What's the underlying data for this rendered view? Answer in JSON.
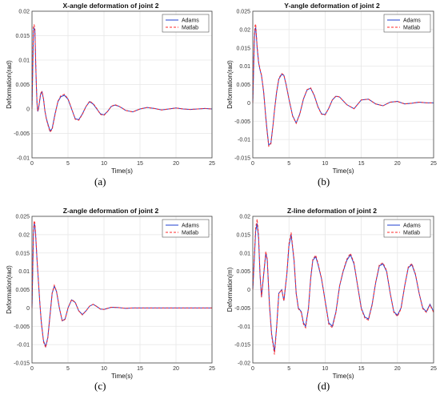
{
  "colors": {
    "adams": "#1f3fd0",
    "matlab": "#ff2a2a",
    "grid": "#e6e6e6",
    "axis": "#444444"
  },
  "captions": [
    "(a)",
    "(b)",
    "(c)",
    "(d)"
  ],
  "chart_data": [
    {
      "type": "line",
      "title": "X-angle deformation of joint 2",
      "xlabel": "Time(s)",
      "ylabel": "Deformation(rad)",
      "xlim": [
        0,
        25
      ],
      "ylim": [
        -0.01,
        0.02
      ],
      "xticks": [
        0,
        5,
        10,
        15,
        20,
        25
      ],
      "yticks": [
        -0.01,
        -0.005,
        0,
        0.005,
        0.01,
        0.015,
        0.02
      ],
      "ytick_labels": [
        "-0.01",
        "-0.005",
        "0",
        "0.005",
        "0.01",
        "0.015",
        "0.02"
      ],
      "grid": true,
      "legend_position": "top-right",
      "series": [
        {
          "name": "Adams",
          "style": "solid",
          "color": "#1f3fd0",
          "x": [
            0,
            0.1,
            0.2,
            0.3,
            0.4,
            0.5,
            0.6,
            0.7,
            0.8,
            0.9,
            1,
            1.2,
            1.4,
            1.6,
            1.8,
            2,
            2.2,
            2.5,
            2.8,
            3.2,
            3.6,
            4,
            4.5,
            5,
            5.5,
            6,
            6.5,
            7,
            7.5,
            8,
            8.5,
            9,
            9.5,
            10,
            10.5,
            11,
            11.5,
            12,
            12.5,
            13,
            14,
            15,
            16,
            17,
            18,
            19,
            20,
            21,
            22,
            23,
            24,
            25
          ],
          "y": [
            0,
            0.008,
            0.016,
            0.0165,
            0.016,
            0.01,
            0.005,
            0.001,
            -0.0005,
            0,
            0.001,
            0.003,
            0.0035,
            0.002,
            -0.0005,
            -0.002,
            -0.003,
            -0.0045,
            -0.004,
            -0.001,
            0.0015,
            0.0025,
            0.0028,
            0.002,
            0,
            -0.002,
            -0.0022,
            -0.001,
            0.0005,
            0.0015,
            0.001,
            0,
            -0.001,
            -0.0012,
            -0.0005,
            0.0005,
            0.0008,
            0.0006,
            0.0002,
            -0.0003,
            -0.0006,
            0,
            0.0003,
            0.0001,
            -0.0002,
            0,
            0.0002,
            0,
            -0.0001,
            0,
            0.0001,
            0
          ]
        },
        {
          "name": "Matlab",
          "style": "dashed",
          "color": "#ff2a2a",
          "x": [
            0,
            0.1,
            0.2,
            0.3,
            0.4,
            0.5,
            0.6,
            0.7,
            0.8,
            0.9,
            1,
            1.2,
            1.4,
            1.6,
            1.8,
            2,
            2.2,
            2.5,
            2.8,
            3.2,
            3.6,
            4,
            4.5,
            5,
            5.5,
            6,
            6.5,
            7,
            7.5,
            8,
            8.5,
            9,
            9.5,
            10,
            10.5,
            11,
            11.5,
            12,
            12.5,
            13,
            14,
            15,
            16,
            17,
            18,
            19,
            20,
            21,
            22,
            23,
            24,
            25
          ],
          "y": [
            0,
            0.009,
            0.017,
            0.0172,
            0.0165,
            0.0105,
            0.0052,
            0.0012,
            -0.0004,
            0.0001,
            0.0012,
            0.0032,
            0.0036,
            0.0021,
            -0.0004,
            -0.0021,
            -0.0032,
            -0.0047,
            -0.0042,
            -0.0012,
            0.0016,
            0.0027,
            0.003,
            0.0021,
            0.0001,
            -0.0021,
            -0.0023,
            -0.0011,
            0.0005,
            0.0016,
            0.0011,
            0.0001,
            -0.0011,
            -0.0013,
            -0.0005,
            0.0005,
            0.0009,
            0.0006,
            0.0002,
            -0.0003,
            -0.0006,
            0,
            0.0003,
            0.0001,
            -0.0002,
            0,
            0.0002,
            0,
            -0.0001,
            0,
            0.0001,
            0
          ]
        }
      ]
    },
    {
      "type": "line",
      "title": "Y-angle deformation of joint 2",
      "xlabel": "Time(s)",
      "ylabel": "Deformation(rad)",
      "xlim": [
        0,
        25
      ],
      "ylim": [
        -0.015,
        0.025
      ],
      "xticks": [
        0,
        5,
        10,
        15,
        20,
        25
      ],
      "yticks": [
        -0.015,
        -0.01,
        -0.005,
        0,
        0.005,
        0.01,
        0.015,
        0.02,
        0.025
      ],
      "ytick_labels": [
        "-0.015",
        "-0.01",
        "-0.005",
        "0",
        "0.005",
        "0.01",
        "0.015",
        "0.02",
        "0.025"
      ],
      "grid": true,
      "legend_position": "top-right",
      "series": [
        {
          "name": "Adams",
          "style": "solid",
          "color": "#1f3fd0",
          "x": [
            0,
            0.1,
            0.2,
            0.3,
            0.4,
            0.5,
            0.6,
            0.8,
            1,
            1.2,
            1.5,
            1.8,
            2,
            2.2,
            2.5,
            2.8,
            3,
            3.3,
            3.6,
            4,
            4.3,
            4.6,
            5,
            5.5,
            6,
            6.5,
            7,
            7.5,
            8,
            8.5,
            9,
            9.5,
            10,
            10.5,
            11,
            11.5,
            12,
            13,
            14,
            15,
            16,
            17,
            18,
            19,
            20,
            21,
            22,
            23,
            24,
            25
          ],
          "y": [
            0,
            0.008,
            0.016,
            0.02,
            0.0205,
            0.018,
            0.015,
            0.011,
            0.009,
            0.0075,
            0.003,
            -0.004,
            -0.008,
            -0.0115,
            -0.011,
            -0.006,
            -0.002,
            0.003,
            0.0065,
            0.0078,
            0.0075,
            0.005,
            0.001,
            -0.0035,
            -0.0055,
            -0.003,
            0.001,
            0.0035,
            0.004,
            0.002,
            -0.001,
            -0.003,
            -0.0032,
            -0.0015,
            0.0008,
            0.0018,
            0.0016,
            -0.0005,
            -0.0016,
            0.0008,
            0.001,
            -0.0003,
            -0.0008,
            0.0002,
            0.0004,
            -0.0003,
            -0.0001,
            0.0002,
            0,
            0
          ]
        },
        {
          "name": "Matlab",
          "style": "dashed",
          "color": "#ff2a2a",
          "x": [
            0,
            0.1,
            0.2,
            0.3,
            0.4,
            0.5,
            0.6,
            0.8,
            1,
            1.2,
            1.5,
            1.8,
            2,
            2.2,
            2.5,
            2.8,
            3,
            3.3,
            3.6,
            4,
            4.3,
            4.6,
            5,
            5.5,
            6,
            6.5,
            7,
            7.5,
            8,
            8.5,
            9,
            9.5,
            10,
            10.5,
            11,
            11.5,
            12,
            13,
            14,
            15,
            16,
            17,
            18,
            19,
            20,
            21,
            22,
            23,
            24,
            25
          ],
          "y": [
            0,
            0.009,
            0.017,
            0.021,
            0.0215,
            0.0185,
            0.0155,
            0.0112,
            0.0092,
            0.0076,
            0.0031,
            -0.0042,
            -0.0082,
            -0.0118,
            -0.0112,
            -0.0061,
            -0.0021,
            0.0031,
            0.0067,
            0.008,
            0.0076,
            0.0051,
            0.0011,
            -0.0036,
            -0.0056,
            -0.0031,
            0.0011,
            0.0036,
            0.0041,
            0.0021,
            -0.0011,
            -0.0031,
            -0.0033,
            -0.0015,
            0.0008,
            0.0019,
            0.0016,
            -0.0005,
            -0.0016,
            0.0008,
            0.001,
            -0.0003,
            -0.0008,
            0.0002,
            0.0004,
            -0.0003,
            -0.0001,
            0.0002,
            0,
            0
          ]
        }
      ]
    },
    {
      "type": "line",
      "title": "Z-angle deformation of joint 2",
      "xlabel": "Time(s)",
      "ylabel": "Deformation(rad)",
      "xlim": [
        0,
        25
      ],
      "ylim": [
        -0.015,
        0.025
      ],
      "xticks": [
        0,
        5,
        10,
        15,
        20,
        25
      ],
      "yticks": [
        -0.015,
        -0.01,
        -0.005,
        0,
        0.005,
        0.01,
        0.015,
        0.02,
        0.025
      ],
      "ytick_labels": [
        "-0.015",
        "-0.01",
        "-0.005",
        "0",
        "0.005",
        "0.01",
        "0.015",
        "0.02",
        "0.025"
      ],
      "grid": true,
      "legend_position": "top-right",
      "series": [
        {
          "name": "Adams",
          "style": "solid",
          "color": "#1f3fd0",
          "x": [
            0,
            0.1,
            0.2,
            0.3,
            0.4,
            0.5,
            0.7,
            0.9,
            1.1,
            1.3,
            1.6,
            1.9,
            2.2,
            2.5,
            2.8,
            3.1,
            3.4,
            3.8,
            4.2,
            4.6,
            5,
            5.5,
            6,
            6.5,
            7,
            7.5,
            8,
            8.5,
            9,
            9.5,
            10,
            11,
            12,
            13,
            14,
            15,
            17,
            19,
            21,
            23,
            25
          ],
          "y": [
            0,
            0.01,
            0.02,
            0.023,
            0.0225,
            0.02,
            0.013,
            0.007,
            0.001,
            -0.004,
            -0.009,
            -0.0105,
            -0.008,
            -0.002,
            0.004,
            0.006,
            0.0045,
            0,
            -0.0035,
            -0.003,
            0,
            0.0022,
            0.0015,
            -0.0008,
            -0.0018,
            -0.0008,
            0.0005,
            0.001,
            0.0004,
            -0.0003,
            -0.0004,
            0.0002,
            0.0001,
            -0.0001,
            0,
            0,
            0,
            0,
            0,
            0,
            0
          ]
        },
        {
          "name": "Matlab",
          "style": "dashed",
          "color": "#ff2a2a",
          "x": [
            0,
            0.1,
            0.2,
            0.3,
            0.4,
            0.5,
            0.7,
            0.9,
            1.1,
            1.3,
            1.6,
            1.9,
            2.2,
            2.5,
            2.8,
            3.1,
            3.4,
            3.8,
            4.2,
            4.6,
            5,
            5.5,
            6,
            6.5,
            7,
            7.5,
            8,
            8.5,
            9,
            9.5,
            10,
            11,
            12,
            13,
            14,
            15,
            17,
            19,
            21,
            23,
            25
          ],
          "y": [
            0,
            0.011,
            0.021,
            0.0238,
            0.0232,
            0.0205,
            0.0134,
            0.0072,
            0.0011,
            -0.0041,
            -0.0093,
            -0.0108,
            -0.0082,
            -0.0021,
            0.0041,
            0.0062,
            0.0046,
            0.0001,
            -0.0036,
            -0.0031,
            0,
            0.0023,
            0.0016,
            -0.0008,
            -0.0019,
            -0.0008,
            0.0005,
            0.001,
            0.0004,
            -0.0003,
            -0.0004,
            0.0002,
            0.0001,
            -0.0001,
            0,
            0,
            0,
            0,
            0,
            0,
            0
          ]
        }
      ]
    },
    {
      "type": "line",
      "title": "Z-line deformation of joint 2",
      "xlabel": "Time(s)",
      "ylabel": "Deformation(m)",
      "xlim": [
        0,
        25
      ],
      "ylim": [
        -0.02,
        0.02
      ],
      "xticks": [
        0,
        5,
        10,
        15,
        20,
        25
      ],
      "yticks": [
        -0.02,
        -0.015,
        -0.01,
        -0.005,
        0,
        0.005,
        0.01,
        0.015,
        0.02
      ],
      "ytick_labels": [
        "-0.02",
        "-0.015",
        "-0.01",
        "-0.005",
        "0",
        "0.005",
        "0.01",
        "0.015",
        "0.02"
      ],
      "grid": true,
      "legend_position": "top-right",
      "series": [
        {
          "name": "Adams",
          "style": "solid",
          "color": "#1f3fd0",
          "x": [
            0,
            0.2,
            0.4,
            0.6,
            0.8,
            1,
            1.2,
            1.5,
            1.8,
            2,
            2.3,
            2.6,
            3,
            3.3,
            3.6,
            4,
            4.3,
            4.7,
            5,
            5.3,
            5.7,
            6,
            6.3,
            6.7,
            7,
            7.3,
            7.7,
            8,
            8.3,
            8.7,
            9,
            9.5,
            10,
            10.5,
            11,
            11.5,
            12,
            12.5,
            13,
            13.5,
            14,
            14.5,
            15,
            15.5,
            16,
            16.5,
            17,
            17.5,
            18,
            18.5,
            19,
            19.5,
            20,
            20.5,
            21,
            21.5,
            22,
            22.5,
            23,
            23.5,
            24,
            24.5,
            25
          ],
          "y": [
            0,
            0.008,
            0.016,
            0.018,
            0.014,
            0.004,
            -0.002,
            0.004,
            0.01,
            0.008,
            -0.004,
            -0.012,
            -0.017,
            -0.01,
            -0.001,
            0,
            -0.003,
            0.004,
            0.012,
            0.015,
            0.008,
            -0.001,
            -0.005,
            -0.006,
            -0.009,
            -0.01,
            -0.005,
            0.003,
            0.008,
            0.009,
            0.007,
            0.003,
            -0.003,
            -0.009,
            -0.01,
            -0.006,
            0.001,
            0.005,
            0.008,
            0.0095,
            0.007,
            0.001,
            -0.005,
            -0.0075,
            -0.008,
            -0.004,
            0.002,
            0.0065,
            0.007,
            0.005,
            -0.001,
            -0.006,
            -0.007,
            -0.005,
            0.001,
            0.006,
            0.0068,
            0.004,
            -0.001,
            -0.005,
            -0.006,
            -0.004,
            -0.006
          ]
        },
        {
          "name": "Matlab",
          "style": "dashed",
          "color": "#ff2a2a",
          "x": [
            0,
            0.2,
            0.4,
            0.6,
            0.8,
            1,
            1.2,
            1.5,
            1.8,
            2,
            2.3,
            2.6,
            3,
            3.3,
            3.6,
            4,
            4.3,
            4.7,
            5,
            5.3,
            5.7,
            6,
            6.3,
            6.7,
            7,
            7.3,
            7.7,
            8,
            8.3,
            8.7,
            9,
            9.5,
            10,
            10.5,
            11,
            11.5,
            12,
            12.5,
            13,
            13.5,
            14,
            14.5,
            15,
            15.5,
            16,
            16.5,
            17,
            17.5,
            18,
            18.5,
            19,
            19.5,
            20,
            20.5,
            21,
            21.5,
            22,
            22.5,
            23,
            23.5,
            24,
            24.5,
            25
          ],
          "y": [
            0,
            0.009,
            0.017,
            0.0192,
            0.0148,
            0.0043,
            -0.0021,
            0.0042,
            0.0104,
            0.0083,
            -0.0042,
            -0.0125,
            -0.0177,
            -0.0104,
            -0.0011,
            0,
            -0.0031,
            0.0042,
            0.0125,
            0.0156,
            0.0083,
            -0.001,
            -0.0052,
            -0.0062,
            -0.0094,
            -0.0104,
            -0.0052,
            0.0031,
            0.0083,
            0.0094,
            0.0073,
            0.0031,
            -0.0031,
            -0.0094,
            -0.0104,
            -0.0062,
            0.001,
            0.0052,
            0.0083,
            0.0099,
            0.0073,
            0.001,
            -0.0052,
            -0.0078,
            -0.0083,
            -0.0042,
            0.0021,
            0.0068,
            0.0073,
            0.0052,
            -0.001,
            -0.0062,
            -0.0073,
            -0.0052,
            0.001,
            0.0062,
            0.0071,
            0.0042,
            -0.001,
            -0.0052,
            -0.0062,
            -0.0042,
            -0.0062
          ]
        }
      ]
    }
  ]
}
